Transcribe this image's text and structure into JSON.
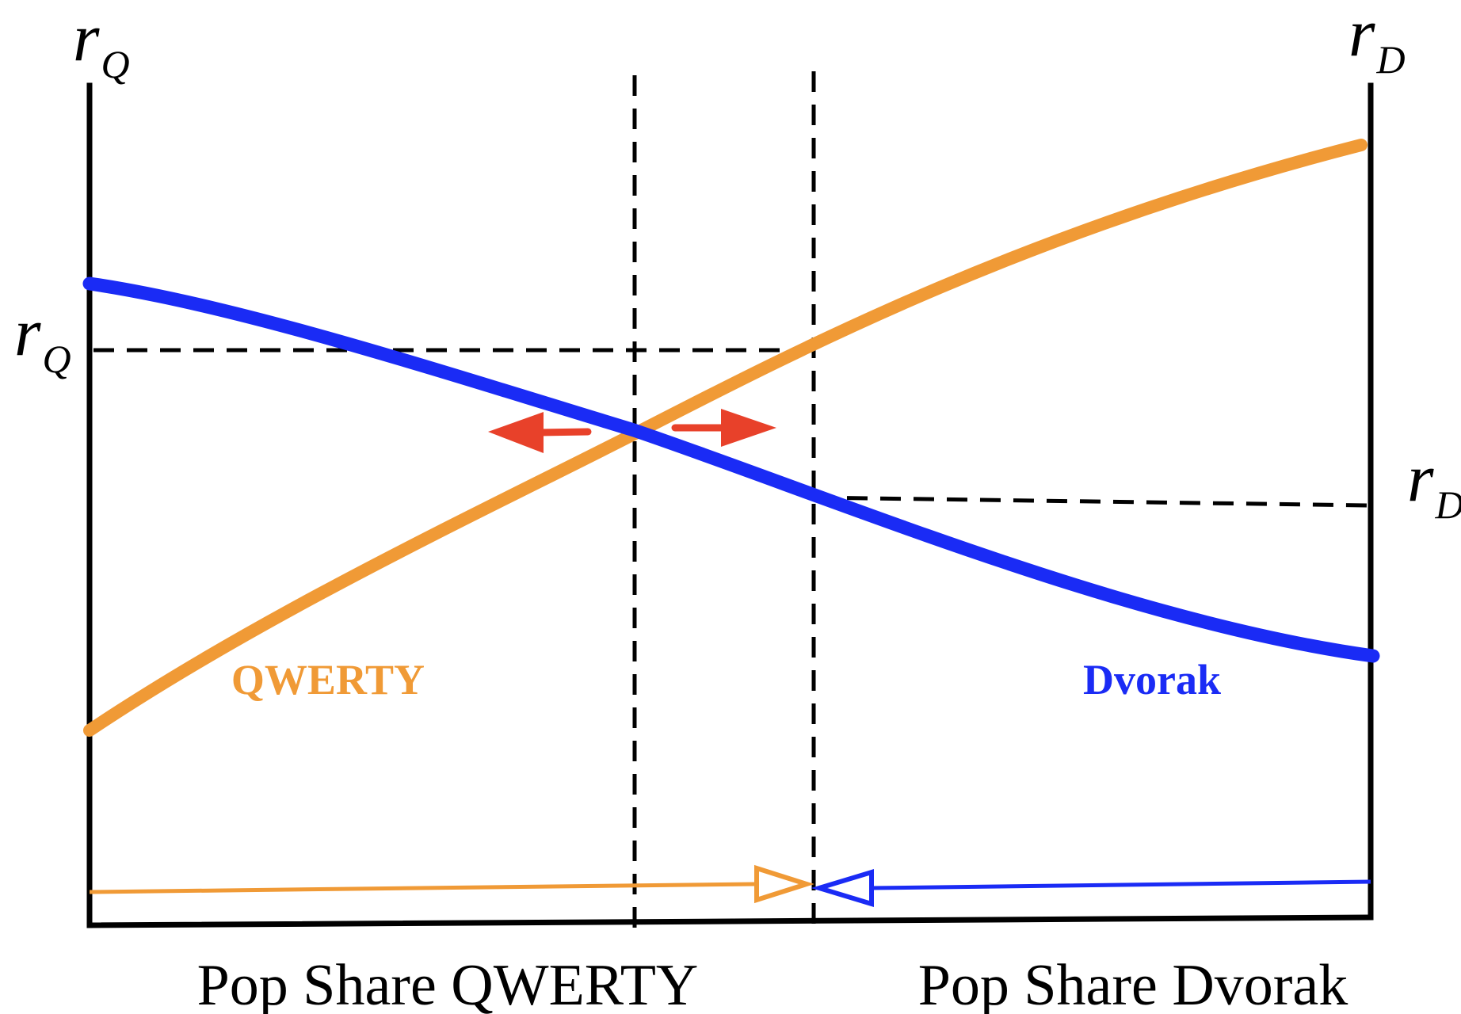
{
  "axes": {
    "left": {
      "symbol": "r",
      "subscript": "Q"
    },
    "right": {
      "symbol": "r",
      "subscript": "D"
    },
    "left_marker": {
      "symbol": "r",
      "subscript": "Q"
    },
    "right_marker": {
      "symbol": "r",
      "subscript": "D"
    }
  },
  "curves": {
    "qwerty": {
      "label": "QWERTY",
      "color": "#F09A36"
    },
    "dvorak": {
      "label": "Dvorak",
      "color": "#1A2BF5"
    }
  },
  "bottom_labels": {
    "left": "Pop Share QWERTY",
    "right": "Pop Share Dvorak"
  },
  "colors": {
    "axis": "#000000",
    "arrow": "#E8412A"
  }
}
